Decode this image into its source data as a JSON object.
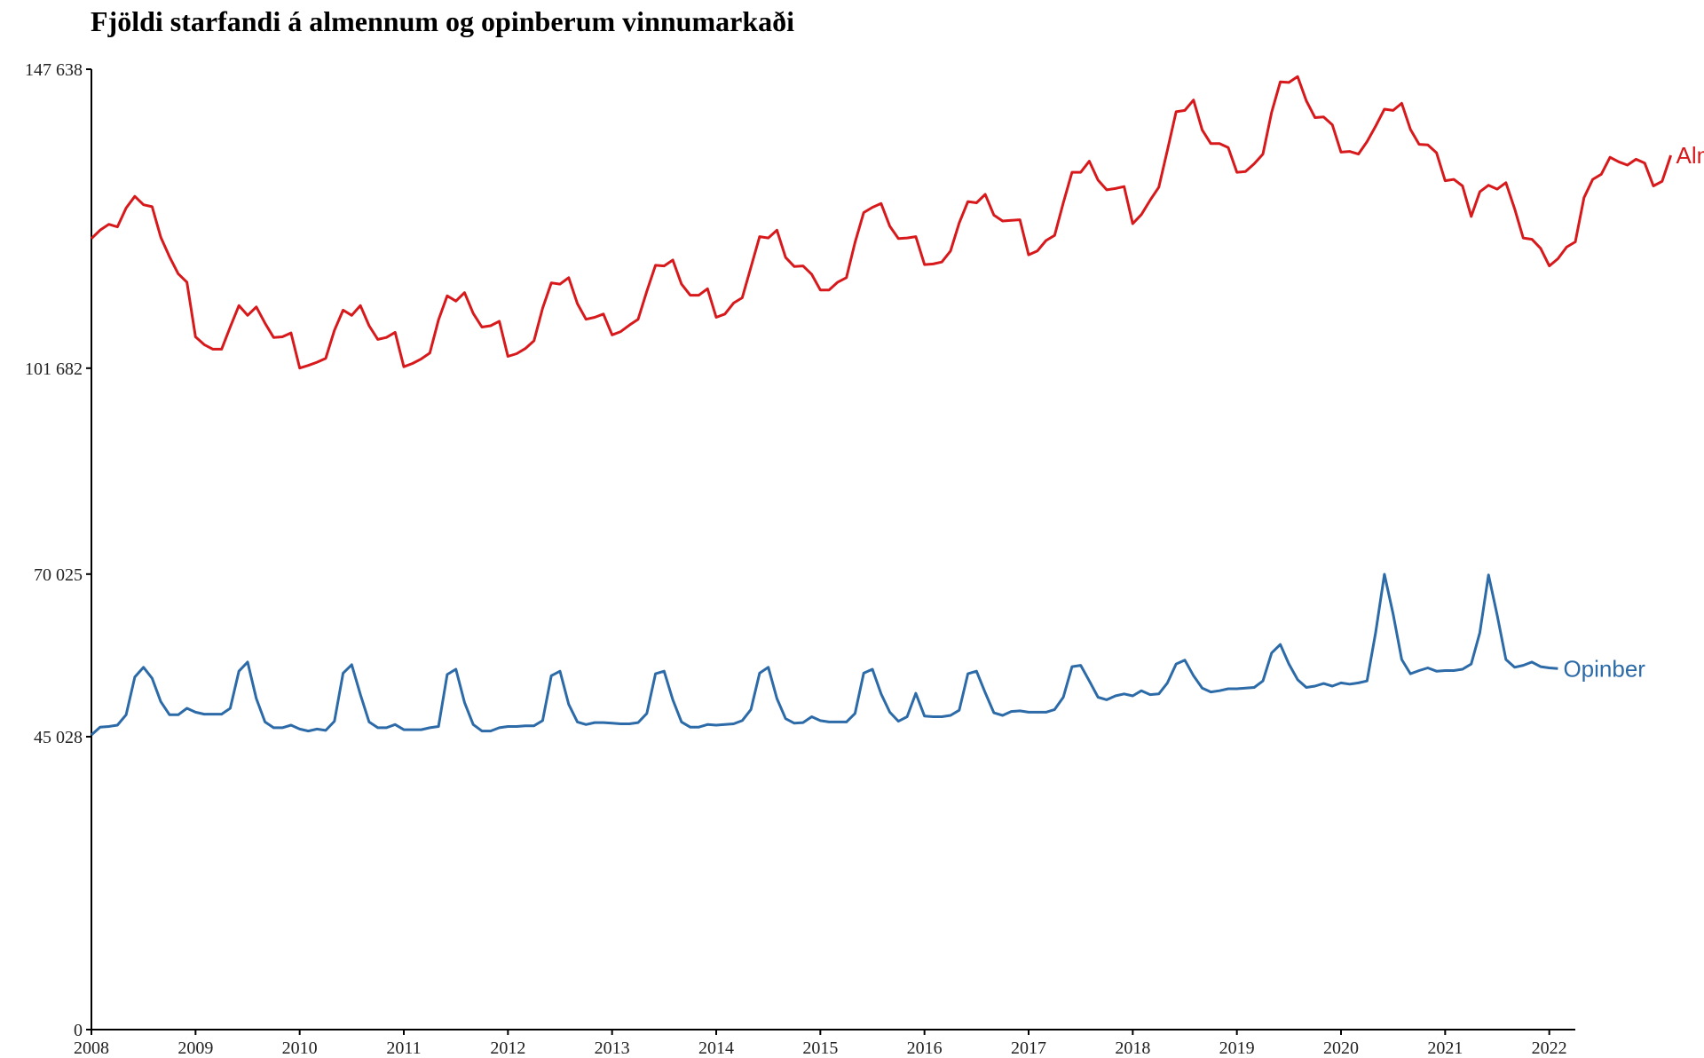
{
  "chart_data": {
    "type": "line",
    "title": "Fjöldi starfandi á almennum og opinberum vinnumarkaði",
    "xlabel": "",
    "ylabel": "",
    "x_start": "2008-01",
    "x_step": "month",
    "xlim": [
      2008,
      2022.25
    ],
    "ylim": [
      0,
      147638
    ],
    "y_ticks": [
      0,
      45028,
      70025,
      101682,
      147638
    ],
    "y_tick_labels": [
      "0",
      "45 028",
      "70 025",
      "101 682",
      "147 638"
    ],
    "x_ticks": [
      2008,
      2009,
      2010,
      2011,
      2012,
      2013,
      2014,
      2015,
      2016,
      2017,
      2018,
      2019,
      2020,
      2021,
      2022
    ],
    "x_tick_labels": [
      "2008",
      "2009",
      "2010",
      "2011",
      "2012",
      "2013",
      "2014",
      "2015",
      "2016",
      "2017",
      "2018",
      "2019",
      "2020",
      "2021",
      "2022"
    ],
    "grid": false,
    "legend": "direct-labels-right",
    "series": [
      {
        "name": "Almennur",
        "color": "#d7191c",
        "values": [
          121600,
          122900,
          123800,
          123400,
          126300,
          128100,
          126800,
          126500,
          121800,
          118800,
          116200,
          114900,
          106500,
          105300,
          104600,
          104600,
          108000,
          111300,
          109800,
          111100,
          108600,
          106400,
          106500,
          107100,
          101700,
          102100,
          102600,
          103200,
          107500,
          110600,
          109800,
          111300,
          108200,
          106100,
          106400,
          107200,
          101900,
          102400,
          103100,
          104000,
          109100,
          112800,
          112000,
          113300,
          110100,
          108000,
          108200,
          108900,
          103500,
          103900,
          104700,
          105900,
          110900,
          114800,
          114600,
          115600,
          111600,
          109200,
          109500,
          110000,
          106800,
          107300,
          108300,
          109200,
          113500,
          117500,
          117400,
          118300,
          114600,
          112900,
          112900,
          113900,
          109500,
          110000,
          111700,
          112500,
          117200,
          121900,
          121700,
          122900,
          118700,
          117300,
          117400,
          116100,
          113700,
          113700,
          114900,
          115600,
          121000,
          125600,
          126400,
          127000,
          123500,
          121600,
          121700,
          121900,
          117600,
          117700,
          118000,
          119700,
          124000,
          127300,
          127100,
          128400,
          125200,
          124300,
          124400,
          124500,
          119100,
          119700,
          121300,
          122100,
          127100,
          131800,
          131800,
          133500,
          130600,
          129100,
          129300,
          129600,
          123900,
          125300,
          127500,
          129500,
          135200,
          141100,
          141300,
          142900,
          138300,
          136200,
          136200,
          135600,
          131800,
          131900,
          133100,
          134600,
          141000,
          145700,
          145600,
          146500,
          142800,
          140200,
          140300,
          139100,
          134900,
          135000,
          134600,
          136500,
          138900,
          141500,
          141300,
          142400,
          138400,
          136100,
          136000,
          134800,
          130500,
          130700,
          129700,
          125000,
          128800,
          129800,
          129200,
          130200,
          126200,
          121700,
          121500,
          120100,
          117400,
          118500,
          120300,
          121100,
          127900,
          130700,
          131500,
          134100,
          133400,
          132900,
          133800,
          133200,
          129700,
          130400,
          134400
        ]
      },
      {
        "name": "Opinber",
        "color": "#2c6aa8",
        "values": [
          45300,
          46500,
          46600,
          46800,
          48400,
          54200,
          55700,
          54000,
          50400,
          48400,
          48400,
          49400,
          48800,
          48500,
          48500,
          48500,
          49400,
          55100,
          56500,
          50900,
          47300,
          46400,
          46400,
          46800,
          46200,
          45900,
          46200,
          46000,
          47400,
          54800,
          56100,
          51500,
          47300,
          46400,
          46400,
          46900,
          46100,
          46100,
          46100,
          46400,
          46600,
          54600,
          55400,
          50300,
          46900,
          45900,
          45900,
          46400,
          46600,
          46600,
          46700,
          46700,
          47500,
          54400,
          55100,
          50000,
          47300,
          46900,
          47200,
          47200,
          47100,
          47000,
          47000,
          47200,
          48600,
          54700,
          55100,
          50700,
          47300,
          46500,
          46500,
          46900,
          46800,
          46900,
          47000,
          47500,
          49200,
          54800,
          55700,
          50900,
          47800,
          47100,
          47200,
          48100,
          47500,
          47300,
          47300,
          47300,
          48600,
          54800,
          55400,
          51600,
          48800,
          47400,
          48100,
          51700,
          48200,
          48100,
          48100,
          48300,
          49100,
          54700,
          55100,
          51800,
          48700,
          48300,
          48900,
          49000,
          48800,
          48800,
          48800,
          49200,
          51100,
          55800,
          56000,
          53600,
          51100,
          50700,
          51300,
          51600,
          51300,
          52100,
          51500,
          51600,
          53300,
          56200,
          56800,
          54400,
          52500,
          51900,
          52100,
          52400,
          52400,
          52500,
          52600,
          53600,
          57900,
          59200,
          56200,
          53800,
          52600,
          52800,
          53200,
          52800,
          53300,
          53100,
          53300,
          53600,
          61100,
          70000,
          63900,
          56900,
          54700,
          55200,
          55600,
          55100,
          55200,
          55200,
          55400,
          56200,
          61000,
          69900,
          63700,
          56900,
          55700,
          56000,
          56500,
          55800,
          55600,
          55500
        ]
      }
    ]
  }
}
